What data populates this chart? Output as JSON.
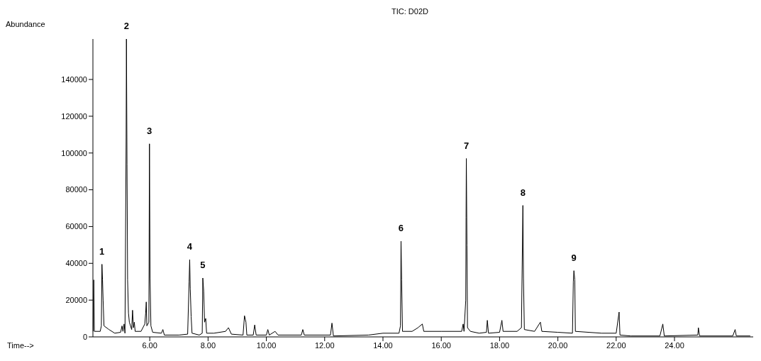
{
  "chart_data": {
    "type": "line",
    "title": "TIC: D02D",
    "ylabel": "Abundance",
    "xlabel": "Time-->",
    "x": [
      4.06,
      4.08,
      4.1,
      4.3,
      4.34,
      4.36,
      4.38,
      4.4,
      4.43,
      4.6,
      4.8,
      5.0,
      5.05,
      5.08,
      5.12,
      5.15,
      5.19,
      5.2,
      5.22,
      5.24,
      5.27,
      5.3,
      5.38,
      5.41,
      5.44,
      5.47,
      5.5,
      5.7,
      5.83,
      5.86,
      5.88,
      5.9,
      5.97,
      5.99,
      6.01,
      6.04,
      6.1,
      6.4,
      6.45,
      6.5,
      7.0,
      7.3,
      7.35,
      7.37,
      7.39,
      7.42,
      7.45,
      7.7,
      7.8,
      7.82,
      7.85,
      7.88,
      7.92,
      7.95,
      8.2,
      8.6,
      8.7,
      8.8,
      9.2,
      9.25,
      9.3,
      9.33,
      9.55,
      9.6,
      9.65,
      10.0,
      10.05,
      10.1,
      10.3,
      10.4,
      11.2,
      11.25,
      11.3,
      12.2,
      12.25,
      12.3,
      13.5,
      14.0,
      14.55,
      14.6,
      14.62,
      14.64,
      14.67,
      15.0,
      15.2,
      15.35,
      15.4,
      16.0,
      16.7,
      16.75,
      16.78,
      16.84,
      16.85,
      16.86,
      16.88,
      16.9,
      17.0,
      17.3,
      17.55,
      17.58,
      17.62,
      18.0,
      18.08,
      18.12,
      18.6,
      18.75,
      18.8,
      18.82,
      18.85,
      19.2,
      19.4,
      19.45,
      20.0,
      20.5,
      20.53,
      20.55,
      20.58,
      20.6,
      21.5,
      22.0,
      22.1,
      22.13,
      22.5,
      23.5,
      23.6,
      23.65,
      24.8,
      24.82,
      24.86,
      26.0,
      26.08,
      26.12,
      26.6
    ],
    "series": [
      {
        "color": "#000000",
        "values": [
          3000,
          31000,
          3000,
          3000,
          6000,
          39500,
          31000,
          20000,
          6000,
          4000,
          2000,
          2500,
          6000,
          3000,
          7000,
          2000,
          108000,
          162000,
          94000,
          31000,
          13000,
          8000,
          4000,
          14500,
          5000,
          8000,
          3000,
          3000,
          7000,
          13000,
          19000,
          6000,
          8000,
          105000,
          32000,
          6000,
          2500,
          2000,
          4000,
          1000,
          1000,
          1500,
          30000,
          42000,
          26000,
          11000,
          2000,
          1000,
          2000,
          32000,
          25000,
          8000,
          10000,
          2000,
          2000,
          3000,
          5000,
          1500,
          1000,
          11500,
          8000,
          1000,
          1000,
          6500,
          1000,
          1000,
          4000,
          1000,
          3000,
          1000,
          1000,
          4000,
          1000,
          1000,
          7500,
          500,
          1000,
          2000,
          2000,
          6000,
          52000,
          31000,
          3000,
          3000,
          5000,
          7000,
          3000,
          3000,
          3000,
          7000,
          3000,
          20000,
          65000,
          97000,
          50000,
          5000,
          3000,
          2000,
          2500,
          9000,
          2000,
          2500,
          9000,
          3000,
          3000,
          5000,
          71500,
          32000,
          4000,
          3000,
          8000,
          3000,
          2500,
          2000,
          30000,
          36000,
          31000,
          3000,
          2000,
          2000,
          13500,
          1000,
          500,
          500,
          7000,
          500,
          1000,
          5000,
          500,
          500,
          4000,
          500,
          500
        ]
      }
    ],
    "xlim": [
      4.05,
      26.7
    ],
    "ylim": [
      0,
      162000
    ],
    "xticks": [
      {
        "value": 6,
        "label": "6.00"
      },
      {
        "value": 8,
        "label": "8.00"
      },
      {
        "value": 10,
        "label": "10.00"
      },
      {
        "value": 12,
        "label": "12.00"
      },
      {
        "value": 14,
        "label": "14.00"
      },
      {
        "value": 16,
        "label": "16.00"
      },
      {
        "value": 18,
        "label": "18.00"
      },
      {
        "value": 20,
        "label": "20.00"
      },
      {
        "value": 22,
        "label": "22.00"
      },
      {
        "value": 24,
        "label": "24.00"
      }
    ],
    "yticks": [
      0,
      20000,
      40000,
      60000,
      80000,
      100000,
      120000,
      140000
    ],
    "annotations": [
      {
        "text": "1",
        "x": 4.36,
        "y": 39500
      },
      {
        "text": "2",
        "x": 5.2,
        "y": 162000
      },
      {
        "text": "3",
        "x": 5.99,
        "y": 105000
      },
      {
        "text": "4",
        "x": 7.37,
        "y": 42000
      },
      {
        "text": "5",
        "x": 7.82,
        "y": 32000
      },
      {
        "text": "6",
        "x": 14.62,
        "y": 52000
      },
      {
        "text": "7",
        "x": 16.86,
        "y": 97000
      },
      {
        "text": "8",
        "x": 18.8,
        "y": 71500
      },
      {
        "text": "9",
        "x": 20.55,
        "y": 36000
      }
    ],
    "grid": false,
    "marker": "none",
    "line_style": "solid"
  }
}
